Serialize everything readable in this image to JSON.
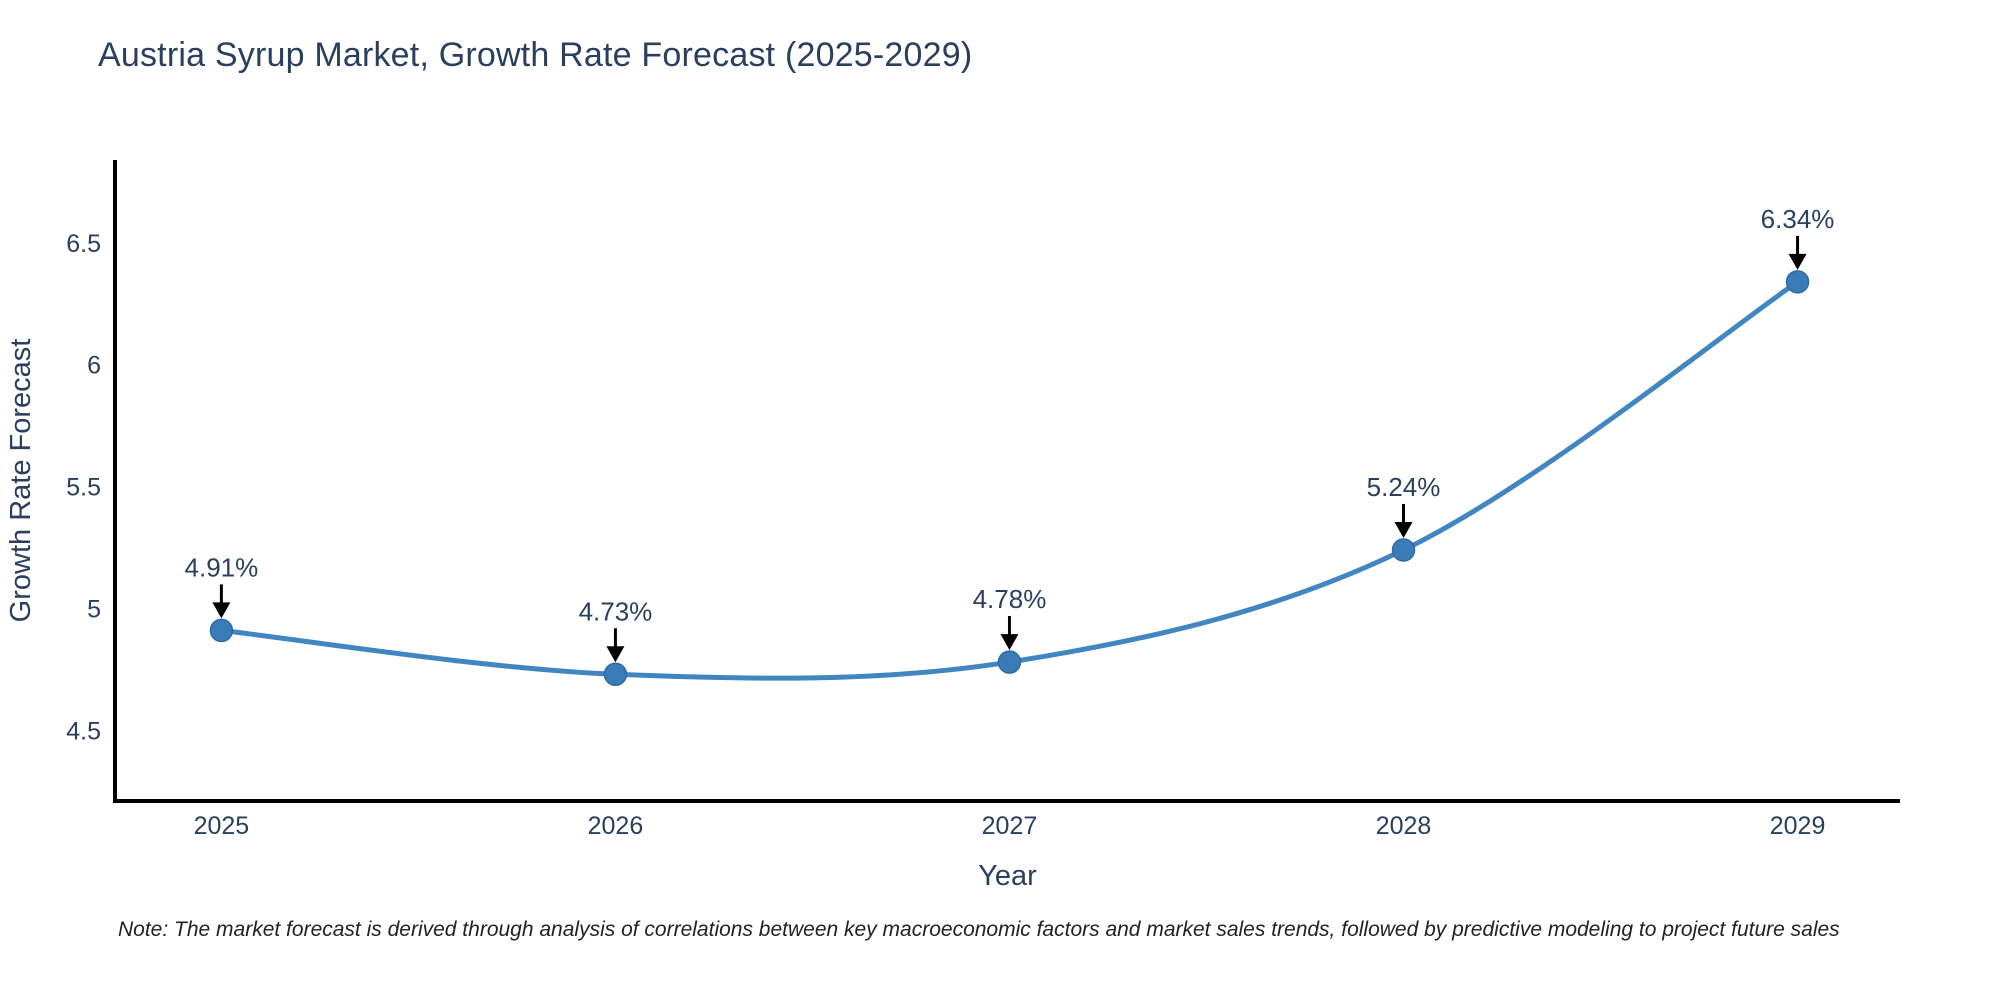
{
  "title": "Austria Syrup Market, Growth Rate Forecast (2025-2029)",
  "note": "Note: The market forecast is derived through analysis of correlations between key macroeconomic factors and market sales trends, followed by predictive modeling to project future sales",
  "colors": {
    "background": "#ffffff",
    "title_text": "#2a3f5f",
    "axis_text": "#2a3f5f",
    "axis_line": "#000000",
    "line": "#4186c0",
    "marker_fill": "#3a7cb8",
    "marker_edge": "#2f6ba3",
    "annotation_text": "#2a3f5f",
    "arrow": "#000000"
  },
  "chart_data": {
    "type": "line",
    "title": "Austria Syrup Market, Growth Rate Forecast (2025-2029)",
    "xlabel": "Year",
    "ylabel": "Growth Rate Forecast",
    "x": [
      2025,
      2026,
      2027,
      2028,
      2029
    ],
    "series": [
      {
        "name": "Growth Rate Forecast",
        "values": [
          4.91,
          4.73,
          4.78,
          5.24,
          6.34
        ],
        "point_labels": [
          "4.91%",
          "4.73%",
          "4.78%",
          "5.24%",
          "6.34%"
        ]
      }
    ],
    "x_tick_labels": [
      "2025",
      "2026",
      "2027",
      "2028",
      "2029"
    ],
    "y_ticks": [
      4.5,
      5,
      5.5,
      6,
      6.5
    ],
    "y_tick_labels": [
      "4.5",
      "5",
      "5.5",
      "6",
      "6.5"
    ],
    "xlim": [
      2024.73,
      2029.26
    ],
    "ylim": [
      4.21,
      6.84
    ],
    "grid": false,
    "legend": "none",
    "line_shape": "spline",
    "markers": true,
    "annotations": "value label with downward black arrow above each data point"
  }
}
